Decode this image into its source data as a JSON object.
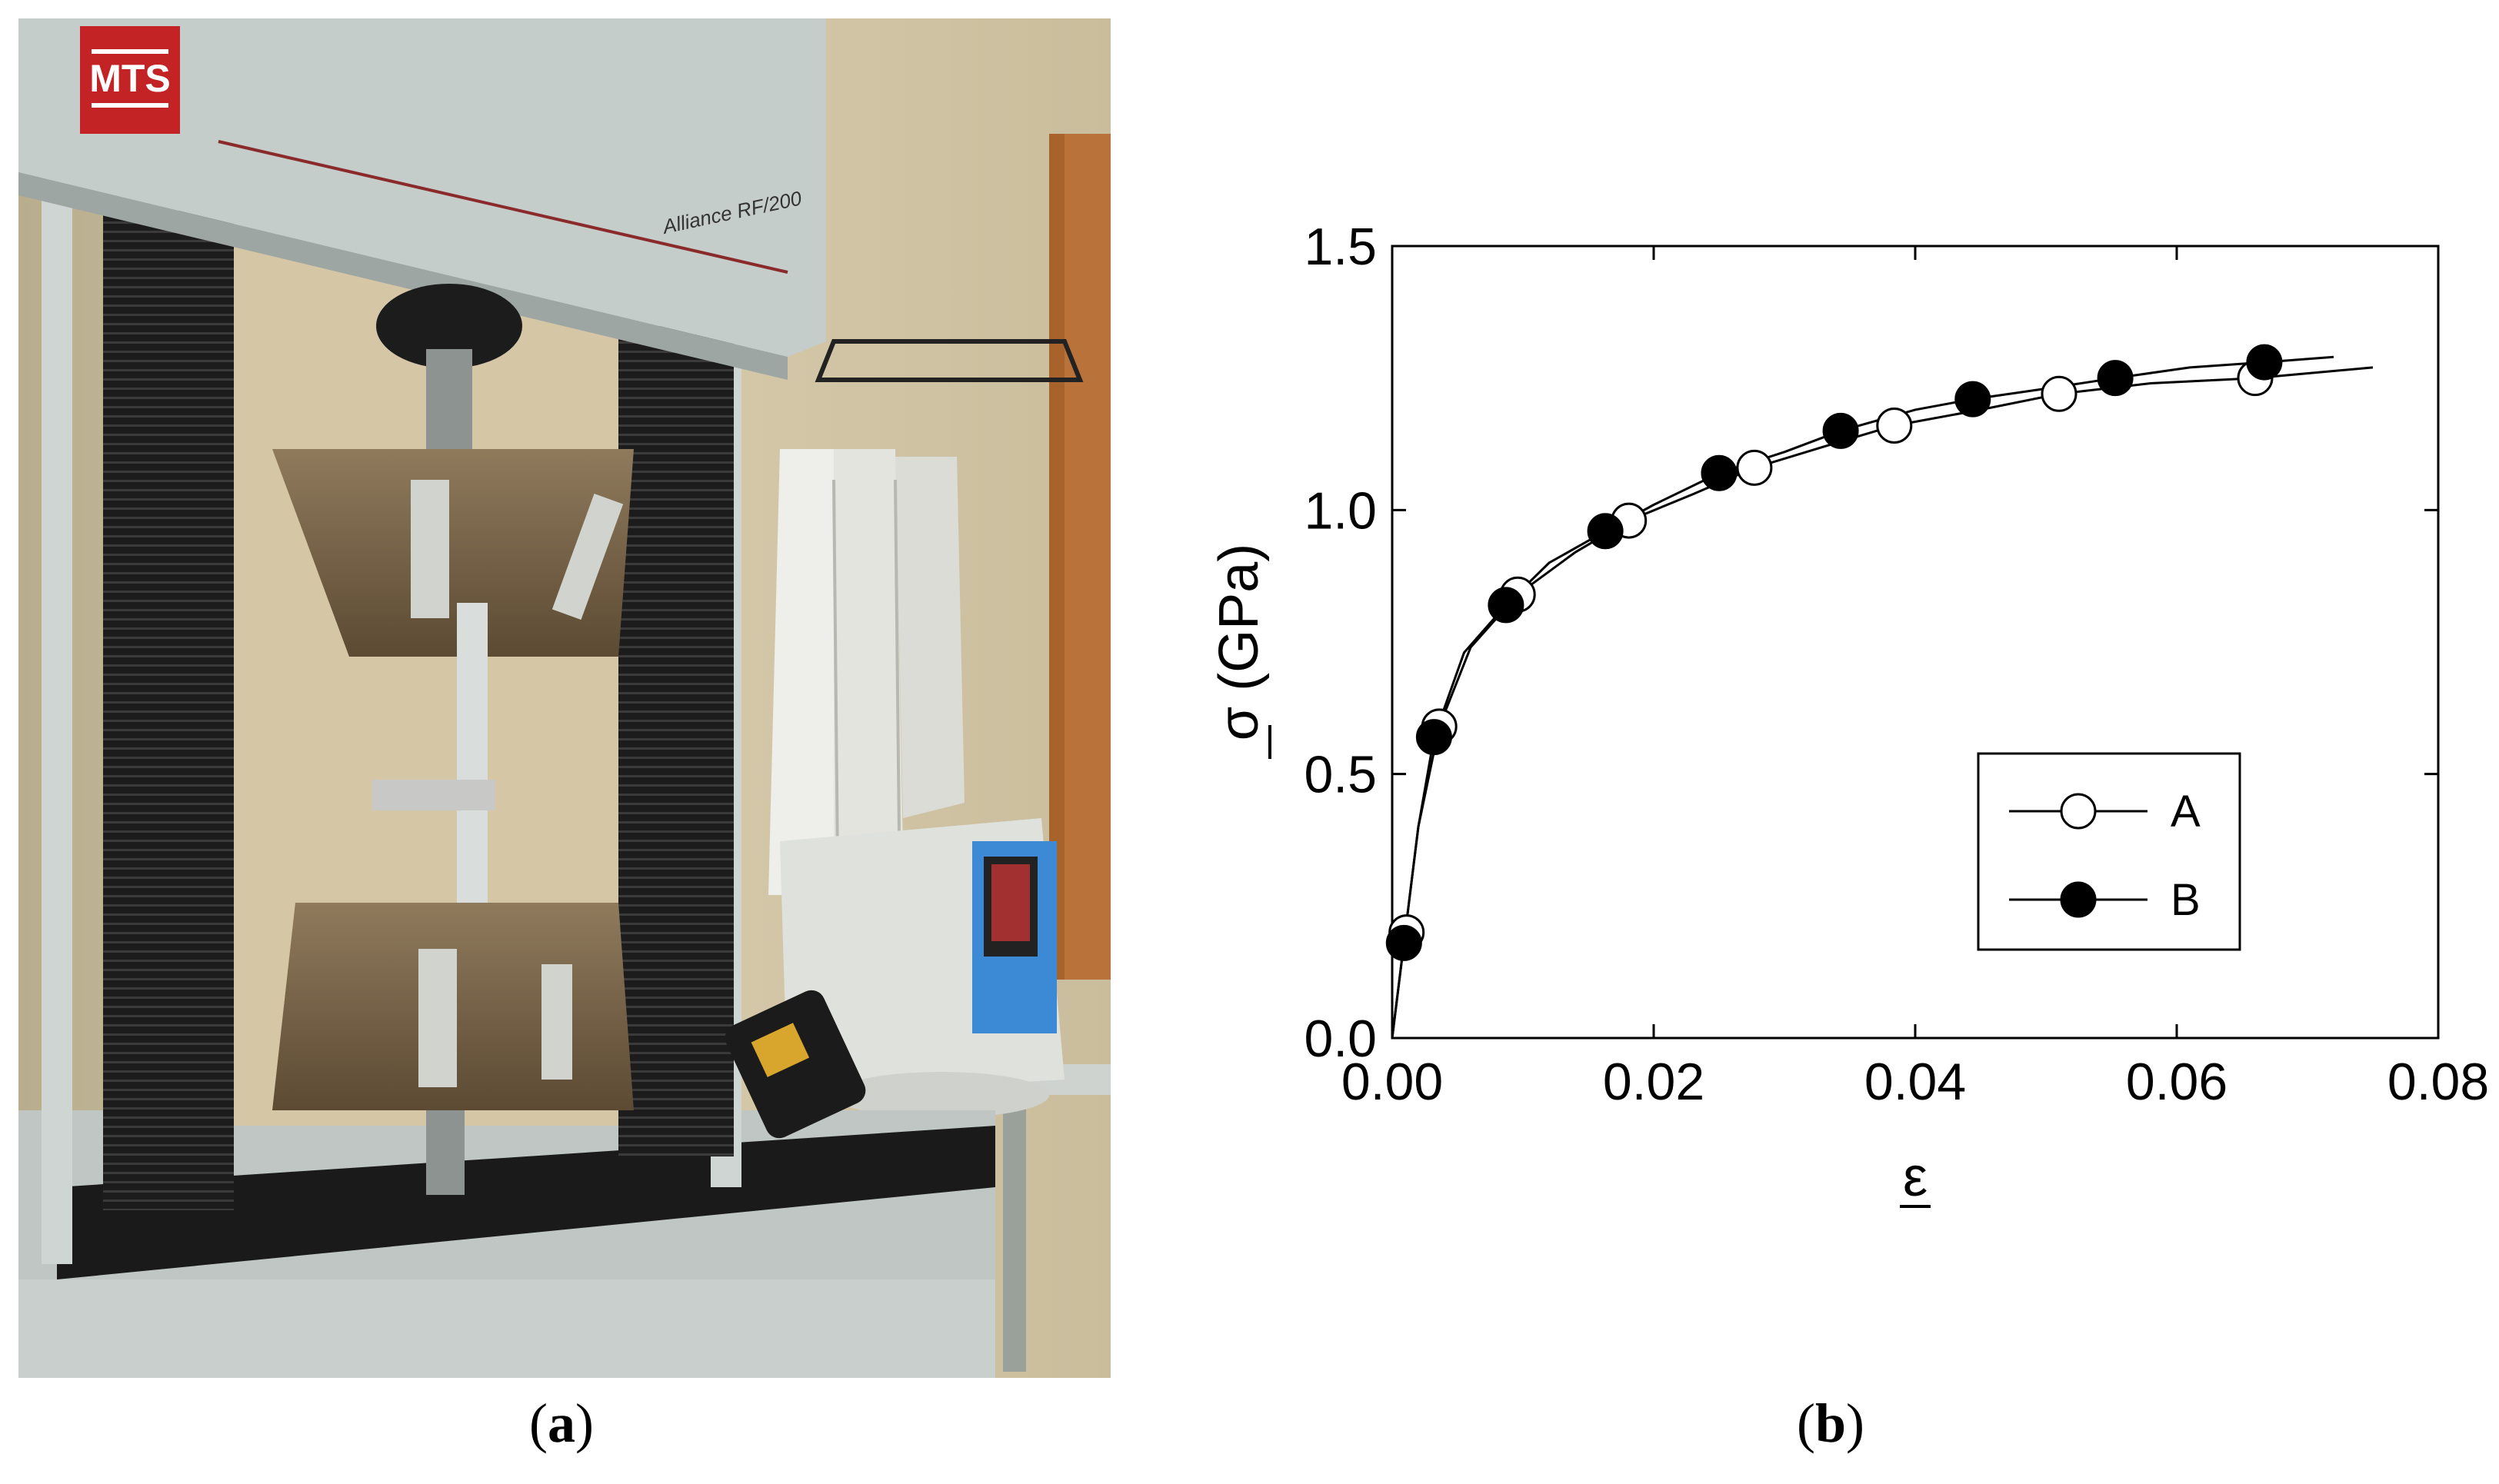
{
  "captions": {
    "a": "a",
    "b": "b"
  },
  "photo": {
    "machine_brand": "MTS",
    "machine_model": "Alliance RF/200"
  },
  "chart_data": {
    "type": "scatter",
    "xlabel": "ε",
    "ylabel": "σ (GPa)",
    "xlim": [
      0.0,
      0.08
    ],
    "ylim": [
      0.0,
      1.5
    ],
    "x_ticks": [
      0.0,
      0.02,
      0.04,
      0.06,
      0.08
    ],
    "x_tick_labels": [
      "0.00",
      "0.02",
      "0.04",
      "0.06",
      "0.08"
    ],
    "y_ticks": [
      0.0,
      0.5,
      1.0,
      1.5
    ],
    "y_tick_labels": [
      "0.0",
      "0.5",
      "1.0",
      "1.5"
    ],
    "grid": false,
    "legend_position": "bottom-right",
    "series": [
      {
        "name": "A",
        "marker": "open-circle",
        "color": "#000000",
        "x": [
          0.0011,
          0.0036,
          0.0096,
          0.0181,
          0.0277,
          0.0384,
          0.051,
          0.066
        ],
        "y": [
          0.2,
          0.59,
          0.84,
          0.98,
          1.08,
          1.16,
          1.22,
          1.25
        ],
        "curve": [
          [
            0.0,
            0.0
          ],
          [
            0.0005,
            0.1
          ],
          [
            0.001,
            0.2
          ],
          [
            0.002,
            0.4
          ],
          [
            0.0036,
            0.59
          ],
          [
            0.006,
            0.74
          ],
          [
            0.0096,
            0.84
          ],
          [
            0.014,
            0.92
          ],
          [
            0.0181,
            0.98
          ],
          [
            0.023,
            1.03
          ],
          [
            0.0277,
            1.08
          ],
          [
            0.033,
            1.12
          ],
          [
            0.0384,
            1.16
          ],
          [
            0.045,
            1.19
          ],
          [
            0.051,
            1.22
          ],
          [
            0.058,
            1.24
          ],
          [
            0.066,
            1.25
          ],
          [
            0.075,
            1.27
          ]
        ]
      },
      {
        "name": "B",
        "marker": "filled-circle",
        "color": "#000000",
        "x": [
          0.0009,
          0.0032,
          0.0087,
          0.0163,
          0.025,
          0.0343,
          0.0444,
          0.0553,
          0.0667
        ],
        "y": [
          0.18,
          0.57,
          0.82,
          0.96,
          1.07,
          1.15,
          1.21,
          1.25,
          1.28
        ],
        "curve": [
          [
            0.0,
            0.0
          ],
          [
            0.0005,
            0.1
          ],
          [
            0.001,
            0.2
          ],
          [
            0.002,
            0.4
          ],
          [
            0.0032,
            0.57
          ],
          [
            0.0055,
            0.73
          ],
          [
            0.0087,
            0.82
          ],
          [
            0.012,
            0.9
          ],
          [
            0.0163,
            0.96
          ],
          [
            0.02,
            1.01
          ],
          [
            0.025,
            1.07
          ],
          [
            0.03,
            1.11
          ],
          [
            0.0343,
            1.15
          ],
          [
            0.04,
            1.19
          ],
          [
            0.0444,
            1.21
          ],
          [
            0.05,
            1.23
          ],
          [
            0.0553,
            1.25
          ],
          [
            0.061,
            1.27
          ],
          [
            0.0667,
            1.28
          ],
          [
            0.072,
            1.29
          ]
        ]
      }
    ]
  }
}
